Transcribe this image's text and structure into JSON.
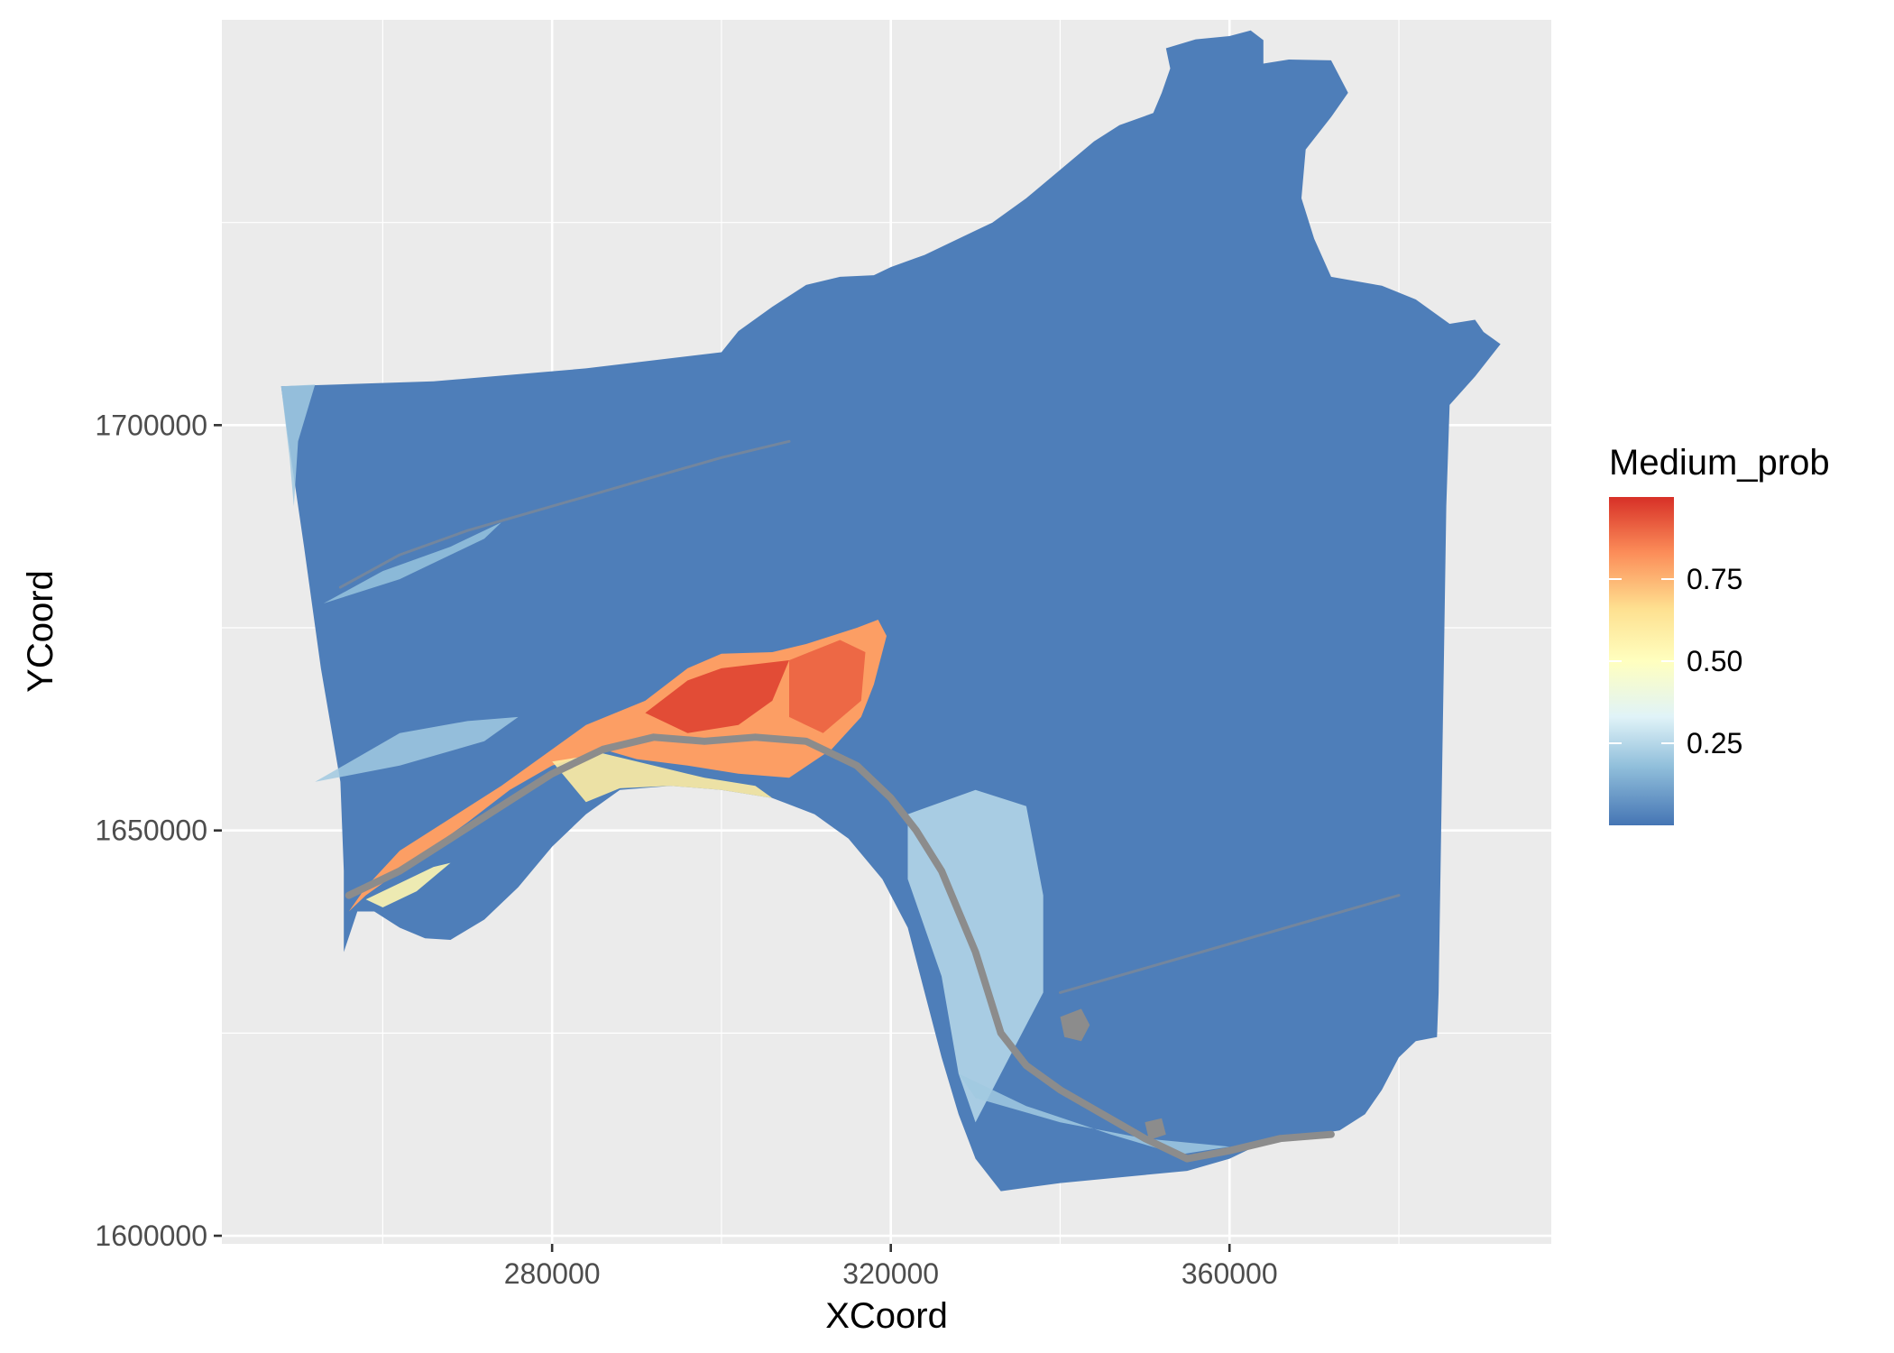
{
  "chart_data": {
    "type": "heatmap",
    "xlabel": "XCoord",
    "ylabel": "YCoord",
    "xlim": [
      241000,
      398000
    ],
    "ylim": [
      1599000,
      1750000
    ],
    "x_ticks": [
      280000,
      320000,
      360000
    ],
    "x_tick_labels": [
      "280000",
      "320000",
      "360000"
    ],
    "y_ticks": [
      1600000,
      1650000,
      1700000
    ],
    "y_tick_labels": [
      "1600000",
      "1650000",
      "1700000"
    ],
    "grid": true,
    "legend": {
      "title": "Medium_prob",
      "placement": "right",
      "range": [
        0,
        1
      ],
      "breaks": [
        0.25,
        0.5,
        0.75
      ],
      "break_labels": [
        "0.25",
        "0.50",
        "0.75"
      ],
      "colors": [
        "#4575b4",
        "#91bfdb",
        "#e0f3f8",
        "#ffffbf",
        "#fee090",
        "#fc8d59",
        "#d73027"
      ]
    },
    "background_color": "#ebebeb",
    "water_color": "#8c8c8c",
    "regions": {
      "study_area_outline": {
        "value": 0.02,
        "points": [
          [
            248000,
            1704800
          ],
          [
            266000,
            1705400
          ],
          [
            284000,
            1707000
          ],
          [
            300000,
            1709000
          ],
          [
            302000,
            1711600
          ],
          [
            306000,
            1714600
          ],
          [
            310000,
            1717300
          ],
          [
            314000,
            1718300
          ],
          [
            318000,
            1718500
          ],
          [
            320000,
            1719500
          ],
          [
            324000,
            1721000
          ],
          [
            328000,
            1723000
          ],
          [
            332000,
            1725000
          ],
          [
            336000,
            1728000
          ],
          [
            340000,
            1731500
          ],
          [
            344000,
            1735000
          ],
          [
            347000,
            1737000
          ],
          [
            351000,
            1738500
          ],
          [
            352000,
            1741000
          ],
          [
            353000,
            1744000
          ],
          [
            352500,
            1746500
          ],
          [
            356000,
            1747600
          ],
          [
            360000,
            1748000
          ],
          [
            362500,
            1748700
          ],
          [
            364000,
            1747500
          ],
          [
            364000,
            1744600
          ],
          [
            367000,
            1745100
          ],
          [
            372000,
            1745000
          ],
          [
            374000,
            1741000
          ],
          [
            372000,
            1738000
          ],
          [
            369000,
            1734000
          ],
          [
            368500,
            1728000
          ],
          [
            370000,
            1723000
          ],
          [
            372000,
            1718300
          ],
          [
            378000,
            1717200
          ],
          [
            382000,
            1715500
          ],
          [
            386000,
            1712500
          ],
          [
            389000,
            1713000
          ],
          [
            390000,
            1711500
          ],
          [
            392000,
            1710000
          ],
          [
            389000,
            1706000
          ],
          [
            386000,
            1702500
          ],
          [
            385600,
            1690000
          ],
          [
            385300,
            1670000
          ],
          [
            385000,
            1650000
          ],
          [
            384700,
            1630000
          ],
          [
            384500,
            1624500
          ],
          [
            382000,
            1624000
          ],
          [
            380000,
            1622000
          ],
          [
            378000,
            1618000
          ],
          [
            376000,
            1615000
          ],
          [
            373000,
            1613000
          ],
          [
            370000,
            1612500
          ],
          [
            365000,
            1612000
          ],
          [
            360000,
            1609500
          ],
          [
            355000,
            1608000
          ],
          [
            350000,
            1607500
          ],
          [
            345000,
            1607000
          ],
          [
            340000,
            1606500
          ],
          [
            333000,
            1605500
          ],
          [
            330000,
            1609500
          ],
          [
            328000,
            1615000
          ],
          [
            326000,
            1622000
          ],
          [
            324000,
            1630000
          ],
          [
            322000,
            1638000
          ],
          [
            319000,
            1644000
          ],
          [
            315000,
            1649000
          ],
          [
            311000,
            1652000
          ],
          [
            306000,
            1654000
          ],
          [
            300000,
            1655000
          ],
          [
            294000,
            1655500
          ],
          [
            288000,
            1655000
          ],
          [
            284000,
            1652000
          ],
          [
            280000,
            1648000
          ],
          [
            276000,
            1643000
          ],
          [
            272000,
            1639000
          ],
          [
            268000,
            1636500
          ],
          [
            265000,
            1636700
          ],
          [
            262000,
            1638000
          ],
          [
            259000,
            1640000
          ],
          [
            257000,
            1640000
          ],
          [
            255400,
            1635000
          ],
          [
            255400,
            1645000
          ],
          [
            255000,
            1656000
          ],
          [
            252700,
            1670000
          ],
          [
            250700,
            1685000
          ],
          [
            248600,
            1700000
          ]
        ]
      },
      "light_patches": [
        {
          "value": 0.2,
          "points": [
            [
              248000,
              1704800
            ],
            [
              252000,
              1705000
            ],
            [
              250000,
              1698000
            ],
            [
              249500,
              1690000
            ],
            [
              249000,
              1696000
            ]
          ]
        },
        {
          "value": 0.2,
          "points": [
            [
              252000,
              1656000
            ],
            [
              262000,
              1662000
            ],
            [
              270000,
              1663500
            ],
            [
              276000,
              1664000
            ],
            [
              272000,
              1661000
            ],
            [
              262000,
              1658000
            ]
          ]
        },
        {
          "value": 0.18,
          "points": [
            [
              253000,
              1678000
            ],
            [
              260000,
              1682000
            ],
            [
              268000,
              1685000
            ],
            [
              274000,
              1688000
            ],
            [
              272000,
              1686000
            ],
            [
              262000,
              1681000
            ]
          ]
        },
        {
          "value": 0.25,
          "points": [
            [
              322000,
              1652000
            ],
            [
              330000,
              1655000
            ],
            [
              336000,
              1653000
            ],
            [
              338000,
              1642000
            ],
            [
              338000,
              1630000
            ],
            [
              334000,
              1622000
            ],
            [
              330000,
              1614000
            ],
            [
              328000,
              1620000
            ],
            [
              326000,
              1632000
            ],
            [
              322000,
              1644000
            ]
          ]
        },
        {
          "value": 0.2,
          "points": [
            [
              328000,
              1620000
            ],
            [
              336000,
              1616000
            ],
            [
              346000,
              1612500
            ],
            [
              354000,
              1610000
            ],
            [
              360000,
              1611000
            ],
            [
              350000,
              1612000
            ],
            [
              340000,
              1614000
            ],
            [
              330000,
              1617000
            ]
          ]
        }
      ],
      "high_patches": [
        {
          "value": 0.8,
          "points": [
            [
              291000,
              1666000
            ],
            [
              296000,
              1670000
            ],
            [
              300000,
              1671800
            ],
            [
              306000,
              1672000
            ],
            [
              310000,
              1673000
            ],
            [
              316000,
              1675000
            ],
            [
              318500,
              1676000
            ],
            [
              319500,
              1674000
            ],
            [
              318000,
              1668000
            ],
            [
              316500,
              1664000
            ],
            [
              313000,
              1660000
            ],
            [
              308000,
              1656500
            ],
            [
              302000,
              1657000
            ],
            [
              296000,
              1658000
            ],
            [
              290000,
              1658800
            ],
            [
              286000,
              1660000
            ],
            [
              280000,
              1658000
            ],
            [
              275000,
              1655000
            ],
            [
              270000,
              1651000
            ],
            [
              266000,
              1648000
            ],
            [
              262000,
              1645000
            ],
            [
              258000,
              1642000
            ],
            [
              256000,
              1640000
            ],
            [
              258000,
              1643000
            ],
            [
              262000,
              1647500
            ],
            [
              268000,
              1651500
            ],
            [
              274000,
              1655500
            ],
            [
              280000,
              1660000
            ],
            [
              284000,
              1663000
            ]
          ]
        },
        {
          "value": 0.95,
          "points": [
            [
              291000,
              1664500
            ],
            [
              296000,
              1668500
            ],
            [
              300000,
              1670000
            ],
            [
              304000,
              1670500
            ],
            [
              308000,
              1671000
            ],
            [
              306000,
              1666000
            ],
            [
              302000,
              1663000
            ],
            [
              296000,
              1662000
            ]
          ]
        },
        {
          "value": 0.9,
          "points": [
            [
              308000,
              1671000
            ],
            [
              314000,
              1673500
            ],
            [
              317000,
              1672000
            ],
            [
              316500,
              1666000
            ],
            [
              312000,
              1662000
            ],
            [
              308000,
              1664000
            ]
          ]
        }
      ],
      "mid_patches": [
        {
          "value": 0.6,
          "points": [
            [
              280000,
              1658500
            ],
            [
              286000,
              1659500
            ],
            [
              292000,
              1658000
            ],
            [
              298000,
              1656500
            ],
            [
              304000,
              1655500
            ],
            [
              306000,
              1654000
            ],
            [
              300000,
              1655000
            ],
            [
              294000,
              1655500
            ],
            [
              288000,
              1655200
            ],
            [
              284000,
              1653500
            ]
          ]
        },
        {
          "value": 0.55,
          "points": [
            [
              258000,
              1641500
            ],
            [
              262000,
              1643500
            ],
            [
              266000,
              1645500
            ],
            [
              268000,
              1646000
            ],
            [
              264000,
              1642500
            ],
            [
              260000,
              1640500
            ]
          ]
        }
      ],
      "rivers": [
        {
          "points": [
            [
              256000,
              1642000
            ],
            [
              262000,
              1645000
            ],
            [
              268000,
              1649000
            ],
            [
              274000,
              1653000
            ],
            [
              280000,
              1657000
            ],
            [
              286000,
              1660000
            ],
            [
              292000,
              1661500
            ],
            [
              298000,
              1661000
            ],
            [
              304000,
              1661500
            ],
            [
              310000,
              1661000
            ],
            [
              316000,
              1658000
            ],
            [
              320000,
              1654000
            ],
            [
              323000,
              1650000
            ],
            [
              326000,
              1645000
            ],
            [
              328000,
              1640000
            ],
            [
              330000,
              1635000
            ],
            [
              331500,
              1630000
            ],
            [
              333000,
              1625000
            ],
            [
              336000,
              1621000
            ],
            [
              340000,
              1618000
            ],
            [
              345000,
              1615000
            ],
            [
              350000,
              1612000
            ],
            [
              355000,
              1609500
            ],
            [
              360000,
              1610500
            ],
            [
              366000,
              1612000
            ],
            [
              372000,
              1612500
            ]
          ]
        },
        {
          "points": [
            [
              255000,
              1680000
            ],
            [
              262000,
              1684000
            ],
            [
              270000,
              1687000
            ],
            [
              280000,
              1690000
            ],
            [
              290000,
              1693000
            ],
            [
              300000,
              1696000
            ],
            [
              308000,
              1698000
            ]
          ]
        },
        {
          "points": [
            [
              340000,
              1630000
            ],
            [
              350000,
              1633000
            ],
            [
              360000,
              1636000
            ],
            [
              370000,
              1639000
            ],
            [
              380000,
              1642000
            ]
          ]
        }
      ],
      "lakes": [
        {
          "points": [
            [
              340000,
              1627000
            ],
            [
              342500,
              1628000
            ],
            [
              343500,
              1626000
            ],
            [
              342500,
              1624000
            ],
            [
              340500,
              1624500
            ]
          ]
        },
        {
          "points": [
            [
              350000,
              1614000
            ],
            [
              352000,
              1614500
            ],
            [
              352500,
              1612500
            ],
            [
              350500,
              1611800
            ]
          ]
        }
      ]
    }
  }
}
